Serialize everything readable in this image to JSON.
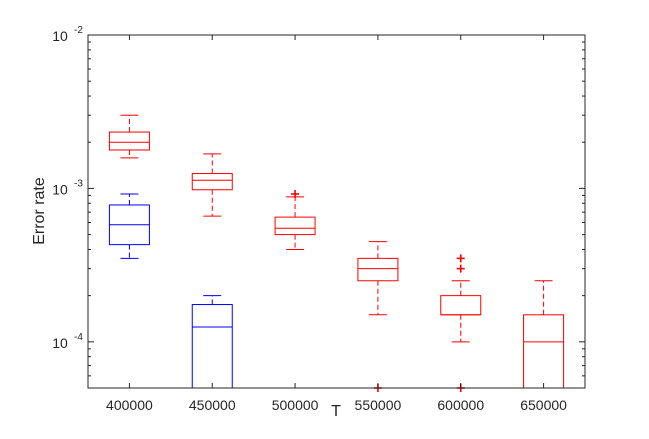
{
  "chart_data": {
    "type": "box",
    "xlabel": "T",
    "ylabel": "Error rate",
    "yscale": "log",
    "ylim": [
      5e-05,
      0.01
    ],
    "xlim": [
      375000,
      675000
    ],
    "x_ticks": [
      "400000",
      "450000",
      "500000",
      "550000",
      "600000",
      "650000"
    ],
    "x_tick_values": [
      400000,
      450000,
      500000,
      550000,
      600000,
      650000
    ],
    "y_ticks": [
      {
        "value": 0.0001,
        "base": "10",
        "exp": "-4"
      },
      {
        "value": 0.001,
        "base": "10",
        "exp": "-3"
      },
      {
        "value": 0.01,
        "base": "10",
        "exp": "-2"
      }
    ],
    "grid": false,
    "series": [
      {
        "color": "#ff0000",
        "boxes": [
          {
            "x": 400000,
            "whislo": 0.00158,
            "q1": 0.00178,
            "med": 0.002,
            "q3": 0.00233,
            "whishi": 0.003,
            "fliers": []
          },
          {
            "x": 450000,
            "whislo": 0.00066,
            "q1": 0.00098,
            "med": 0.00113,
            "q3": 0.00125,
            "whishi": 0.00168,
            "fliers": []
          },
          {
            "x": 500000,
            "whislo": 0.0004,
            "q1": 0.0005,
            "med": 0.00055,
            "q3": 0.00065,
            "whishi": 0.00088,
            "fliers": [
              0.00092
            ]
          },
          {
            "x": 550000,
            "whislo": 0.00015,
            "q1": 0.00025,
            "med": 0.0003,
            "q3": 0.00035,
            "whishi": 0.00045,
            "fliers": [
              5e-05
            ]
          },
          {
            "x": 600000,
            "whislo": 0.0001,
            "q1": 0.00015,
            "med": 0.00015,
            "q3": 0.0002,
            "whishi": 0.00025,
            "fliers": [
              0.00035,
              0.0003,
              5e-05
            ]
          },
          {
            "x": 650000,
            "whislo": 5e-05,
            "q1": 5e-05,
            "med": 0.0001,
            "q3": 0.00015,
            "whishi": 0.00025,
            "fliers": []
          }
        ]
      },
      {
        "color": "#0000ff",
        "boxes": [
          {
            "x": 400000,
            "whislo": 0.00035,
            "q1": 0.00043,
            "med": 0.00058,
            "q3": 0.00078,
            "whishi": 0.00092,
            "fliers": []
          },
          {
            "x": 450000,
            "whislo": 5e-05,
            "q1": 5e-05,
            "med": 0.000125,
            "q3": 0.000175,
            "whishi": 0.0002,
            "fliers": []
          },
          {
            "x": 500000,
            "whislo": 5e-05,
            "q1": 5e-05,
            "med": 5e-05,
            "q3": 5e-05,
            "whishi": 5e-05,
            "fliers": []
          }
        ]
      }
    ]
  }
}
